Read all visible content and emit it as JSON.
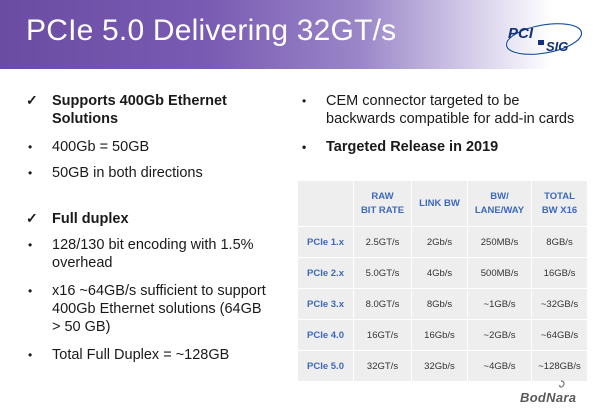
{
  "slide": {
    "title": "PCIe 5.0 Delivering 32GT/s",
    "logo_text": "PCI SIG",
    "watermark": "BodNara"
  },
  "left_column": [
    {
      "marker": "✓",
      "text": "Supports 400Gb Ethernet Solutions",
      "bold": true
    },
    {
      "marker": "•",
      "text": "400Gb = 50GB",
      "bold": false
    },
    {
      "marker": "•",
      "text": "50GB in both directions",
      "bold": false
    },
    {
      "marker": "✓",
      "text": "Full duplex",
      "bold": true
    },
    {
      "marker": "•",
      "text": "128/130 bit encoding with 1.5% overhead",
      "bold": false
    },
    {
      "marker": "•",
      "text": "x16 ~64GB/s sufficient to support 400Gb Ethernet solutions (64GB > 50 GB)",
      "bold": false
    },
    {
      "marker": "•",
      "text": "Total Full Duplex = ~128GB",
      "bold": false
    }
  ],
  "right_column": [
    {
      "marker": "•",
      "text": "CEM connector targeted to be backwards compatible for add-in cards",
      "bold": false
    },
    {
      "marker": "•",
      "text": "Targeted Release in 2019",
      "bold": true
    }
  ],
  "table": {
    "headers": [
      {
        "line1": "RAW",
        "line2": "BIT RATE"
      },
      {
        "line1": "LINK BW",
        "line2": ""
      },
      {
        "line1": "BW/",
        "line2": "LANE/WAY"
      },
      {
        "line1": "TOTAL",
        "line2": "BW X16"
      }
    ],
    "rows": [
      {
        "label": "PCIe 1.x",
        "cells": [
          "2.5GT/s",
          "2Gb/s",
          "250MB/s",
          "8GB/s"
        ]
      },
      {
        "label": "PCIe 2.x",
        "cells": [
          "5.0GT/s",
          "4Gb/s",
          "500MB/s",
          "16GB/s"
        ]
      },
      {
        "label": "PCIe 3.x",
        "cells": [
          "8.0GT/s",
          "8Gb/s",
          "~1GB/s",
          "~32GB/s"
        ]
      },
      {
        "label": "PCIe 4.0",
        "cells": [
          "16GT/s",
          "16Gb/s",
          "~2GB/s",
          "~64GB/s"
        ]
      },
      {
        "label": "PCIe 5.0",
        "cells": [
          "32GT/s",
          "32Gb/s",
          "~4GB/s",
          "~128GB/s"
        ]
      }
    ]
  },
  "colors": {
    "header_purple": "#6a4ca3",
    "table_accent": "#3d69b8",
    "table_bg": "#eeeeee"
  }
}
